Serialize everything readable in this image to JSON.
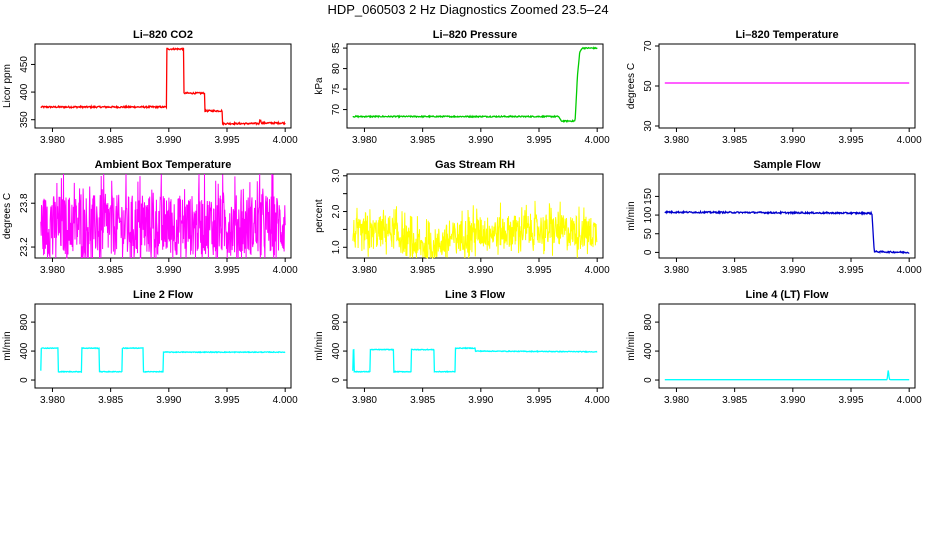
{
  "figure": {
    "title": "HDP_060503  2 Hz Diagnostics Zoomed 23.5–24"
  },
  "chart_data": [
    {
      "type": "line",
      "title": "Li–820 CO2",
      "xlabel": "",
      "ylabel": "Licor ppm",
      "color": "#ff0000",
      "xlim": [
        3.9785,
        4.0005
      ],
      "ylim": [
        335,
        487
      ],
      "xticks": [
        3.98,
        3.985,
        3.99,
        3.995,
        4.0
      ],
      "xtick_labels": [
        "3.980",
        "3.985",
        "3.990",
        "3.995",
        "4.000"
      ],
      "yticks": [
        350,
        400,
        450
      ],
      "ytick_labels": [
        "350",
        "400",
        "450"
      ],
      "series": [
        {
          "noise": 1.5,
          "x": [
            3.979,
            3.9898,
            3.9898,
            3.9913,
            3.9913,
            3.9931,
            3.9931,
            3.9946,
            3.9946,
            3.9978,
            3.9978,
            3.9979,
            3.9979,
            4.0
          ],
          "y": [
            373,
            373,
            478,
            478,
            398,
            398,
            366,
            366,
            343,
            343,
            350,
            350,
            344,
            344
          ]
        }
      ]
    },
    {
      "type": "line",
      "title": "Li–820 Pressure",
      "xlabel": "",
      "ylabel": "kPa",
      "color": "#00cc00",
      "xlim": [
        3.9785,
        4.0005
      ],
      "ylim": [
        65.5,
        86
      ],
      "xticks": [
        3.98,
        3.985,
        3.99,
        3.995,
        4.0
      ],
      "xtick_labels": [
        "3.980",
        "3.985",
        "3.990",
        "3.995",
        "4.000"
      ],
      "yticks": [
        70,
        75,
        80,
        85
      ],
      "ytick_labels": [
        "70",
        "75",
        "80",
        "85"
      ],
      "series": [
        {
          "noise": 0.15,
          "x": [
            3.979,
            3.9967,
            3.9969,
            3.9981,
            3.9983,
            3.9985,
            3.9987,
            4.0
          ],
          "y": [
            68.3,
            68.3,
            67.2,
            67.2,
            78,
            84,
            85,
            85
          ]
        }
      ]
    },
    {
      "type": "line",
      "title": "Li–820 Temperature",
      "xlabel": "",
      "ylabel": "degrees C",
      "color": "#ff00ff",
      "xlim": [
        3.9785,
        4.0005
      ],
      "ylim": [
        29,
        71
      ],
      "xticks": [
        3.98,
        3.985,
        3.99,
        3.995,
        4.0
      ],
      "xtick_labels": [
        "3.980",
        "3.985",
        "3.990",
        "3.995",
        "4.000"
      ],
      "yticks": [
        30,
        50,
        70
      ],
      "ytick_labels": [
        "30",
        "50",
        "70"
      ],
      "series": [
        {
          "noise": 0,
          "x": [
            3.979,
            4.0
          ],
          "y": [
            51.5,
            51.5
          ]
        }
      ]
    },
    {
      "type": "line",
      "title": "Ambient Box Temperature",
      "xlabel": "",
      "ylabel": "degrees C",
      "color": "#ff00ff",
      "xlim": [
        3.9785,
        4.0005
      ],
      "ylim": [
        23.05,
        24.2
      ],
      "xticks": [
        3.98,
        3.985,
        3.99,
        3.995,
        4.0
      ],
      "xtick_labels": [
        "3.980",
        "3.985",
        "3.990",
        "3.995",
        "4.000"
      ],
      "yticks": [
        23.2,
        23.8
      ],
      "ytick_labels": [
        "23.2",
        "23.8"
      ],
      "series": [
        {
          "noise": 0.42,
          "spiky": true,
          "x": [
            3.979,
            4.0
          ],
          "y": [
            23.5,
            23.5
          ]
        }
      ]
    },
    {
      "type": "line",
      "title": "Gas Stream RH",
      "xlabel": "",
      "ylabel": "percent",
      "color": "#ffff00",
      "xlim": [
        3.9785,
        4.0005
      ],
      "ylim": [
        0.7,
        3.05
      ],
      "xticks": [
        3.98,
        3.985,
        3.99,
        3.995,
        4.0
      ],
      "xtick_labels": [
        "3.980",
        "3.985",
        "3.990",
        "3.995",
        "4.000"
      ],
      "yticks": [
        1.0,
        1.5,
        2.0,
        2.5,
        3.0
      ],
      "ytick_labels": [
        "1.0",
        "",
        "2.0",
        "",
        "3.0"
      ],
      "series": [
        {
          "noise": 0.45,
          "spiky": true,
          "x": [
            3.979,
            3.98,
            3.982,
            3.984,
            3.9855,
            3.987,
            3.989,
            3.992,
            3.995,
            3.998,
            4.0
          ],
          "y": [
            1.4,
            1.3,
            1.5,
            1.1,
            1.0,
            1.2,
            1.4,
            1.45,
            1.5,
            1.45,
            1.4
          ]
        }
      ]
    },
    {
      "type": "line",
      "title": "Sample Flow",
      "xlabel": "",
      "ylabel": "ml/min",
      "color": "#0000cc",
      "xlim": [
        3.9785,
        4.0005
      ],
      "ylim": [
        -15,
        210
      ],
      "xticks": [
        3.98,
        3.985,
        3.99,
        3.995,
        4.0
      ],
      "xtick_labels": [
        "3.980",
        "3.985",
        "3.990",
        "3.995",
        "4.000"
      ],
      "yticks": [
        0,
        50,
        100,
        150
      ],
      "ytick_labels": [
        "0",
        "50",
        "100",
        "150"
      ],
      "series": [
        {
          "noise": 2,
          "x": [
            3.979,
            3.9965,
            3.9968,
            3.997,
            4.0
          ],
          "y": [
            108,
            105,
            105,
            2,
            0
          ]
        }
      ]
    },
    {
      "type": "line",
      "title": "Line 2 Flow",
      "xlabel": "",
      "ylabel": "ml/min",
      "color": "#00ffff",
      "xlim": [
        3.9785,
        4.0005
      ],
      "ylim": [
        -110,
        1050
      ],
      "xticks": [
        3.98,
        3.985,
        3.99,
        3.995,
        4.0
      ],
      "xtick_labels": [
        "3.980",
        "3.985",
        "3.990",
        "3.995",
        "4.000"
      ],
      "yticks": [
        0,
        400,
        800
      ],
      "ytick_labels": [
        "0",
        "400",
        "800"
      ],
      "series": [
        {
          "noise": 5,
          "x": [
            3.979,
            3.979,
            3.9805,
            3.9805,
            3.9825,
            3.9825,
            3.984,
            3.984,
            3.986,
            3.986,
            3.9878,
            3.9878,
            3.9895,
            3.9895,
            4.0
          ],
          "y": [
            130,
            440,
            440,
            115,
            115,
            440,
            440,
            115,
            115,
            440,
            440,
            115,
            115,
            385,
            385
          ]
        }
      ]
    },
    {
      "type": "line",
      "title": "Line 3 Flow",
      "xlabel": "",
      "ylabel": "ml/min",
      "color": "#00ffff",
      "xlim": [
        3.9785,
        4.0005
      ],
      "ylim": [
        -110,
        1050
      ],
      "xticks": [
        3.98,
        3.985,
        3.99,
        3.995,
        4.0
      ],
      "xtick_labels": [
        "3.980",
        "3.985",
        "3.990",
        "3.995",
        "4.000"
      ],
      "yticks": [
        0,
        400,
        800
      ],
      "ytick_labels": [
        "0",
        "400",
        "800"
      ],
      "series": [
        {
          "noise": 5,
          "x": [
            3.979,
            3.979,
            3.9791,
            3.9791,
            3.9805,
            3.9805,
            3.9825,
            3.9825,
            3.984,
            3.984,
            3.986,
            3.986,
            3.9878,
            3.9878,
            3.9895,
            3.9895,
            4.0
          ],
          "y": [
            130,
            420,
            420,
            115,
            115,
            420,
            420,
            115,
            115,
            420,
            420,
            115,
            115,
            440,
            440,
            400,
            390
          ]
        }
      ]
    },
    {
      "type": "line",
      "title": "Line 4 (LT) Flow",
      "xlabel": "",
      "ylabel": "ml/min",
      "color": "#00ffff",
      "xlim": [
        3.9785,
        4.0005
      ],
      "ylim": [
        -110,
        1050
      ],
      "xticks": [
        3.98,
        3.985,
        3.99,
        3.995,
        4.0
      ],
      "xtick_labels": [
        "3.980",
        "3.985",
        "3.990",
        "3.995",
        "4.000"
      ],
      "yticks": [
        0,
        400,
        800
      ],
      "ytick_labels": [
        "0",
        "400",
        "800"
      ],
      "series": [
        {
          "noise": 0,
          "x": [
            3.979,
            3.9981,
            3.9982,
            3.9983,
            3.9984,
            4.0
          ],
          "y": [
            5,
            5,
            140,
            10,
            5,
            5
          ]
        }
      ]
    }
  ]
}
